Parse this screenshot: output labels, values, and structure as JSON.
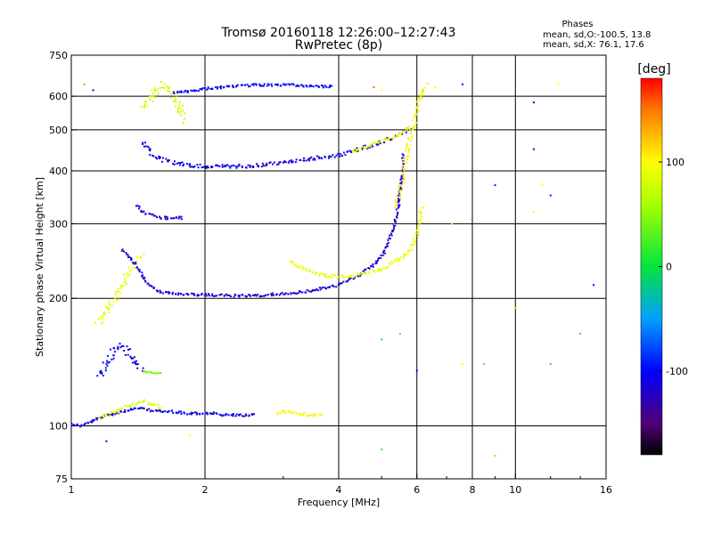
{
  "title": {
    "line1": "Tromsø 20160118 12:26:00–12:27:43",
    "line2": "RwPretec (8p)"
  },
  "stats": {
    "heading": "Phases",
    "line1": "mean, sd,O:-100.5, 13.8",
    "line2": "mean, sd,X:  76.1, 17.6"
  },
  "colorbar": {
    "label": "[deg]",
    "range": [
      -180,
      180
    ],
    "ticks": [
      100,
      0,
      -100
    ],
    "tick_labels": [
      "100",
      "0",
      "-100"
    ]
  },
  "chart_data": {
    "type": "scatter",
    "xlabel": "Frequency [MHz]",
    "ylabel": "Stationary phase Virtual Height [km]",
    "xscale": "log",
    "yscale": "log",
    "xlim": [
      1,
      16
    ],
    "ylim": [
      75,
      750
    ],
    "xticks": [
      1,
      2,
      4,
      6,
      8,
      10,
      16
    ],
    "xtick_labels": [
      "1",
      "2",
      "4",
      "6",
      "8",
      "10",
      "16"
    ],
    "xgrid": [
      2,
      4,
      6,
      8,
      10
    ],
    "yticks": [
      75,
      100,
      200,
      300,
      400,
      500,
      600,
      750
    ],
    "ytick_labels": [
      "75",
      "100",
      "200",
      "300",
      "400",
      "500",
      "600",
      "750"
    ],
    "ygrid": [
      100,
      200,
      300,
      400,
      500,
      600
    ],
    "grid": true,
    "color_variable": "phase [deg]",
    "traces": [
      {
        "x": [
          1.0,
          1.05,
          1.1,
          1.15,
          1.2,
          1.3,
          1.4,
          1.5,
          1.6,
          1.7,
          1.8,
          1.9,
          2.0,
          2.1,
          2.2,
          2.4,
          2.6
        ],
        "y": [
          101,
          100,
          102,
          104,
          106,
          108,
          110,
          109,
          108,
          108,
          107,
          107,
          107,
          107,
          106,
          106,
          106
        ],
        "phase": -110,
        "spread": 2
      },
      {
        "x": [
          1.15,
          1.2,
          1.25,
          1.3,
          1.35,
          1.4,
          1.45,
          1.55,
          1.6
        ],
        "y": [
          104,
          106,
          108,
          110,
          112,
          113,
          114,
          112,
          110
        ],
        "phase": 85,
        "spread": 3
      },
      {
        "x": [
          2.9,
          3.0,
          3.1,
          3.2,
          3.3,
          3.4,
          3.5,
          3.6,
          3.7
        ],
        "y": [
          107,
          108,
          108,
          107,
          107,
          106,
          106,
          106,
          106
        ],
        "phase": 95,
        "spread": 2
      },
      {
        "x": [
          1.15,
          1.2,
          1.25,
          1.3,
          1.35,
          1.4,
          1.45
        ],
        "y": [
          130,
          140,
          150,
          155,
          148,
          140,
          135
        ],
        "phase": -105,
        "spread": 5
      },
      {
        "x": [
          1.45,
          1.5,
          1.55,
          1.6
        ],
        "y": [
          134,
          134,
          133,
          133
        ],
        "phase": 40,
        "spread": 1
      },
      {
        "x": [
          1.15,
          1.2,
          1.25,
          1.3,
          1.35,
          1.4,
          1.45
        ],
        "y": [
          175,
          185,
          200,
          215,
          230,
          245,
          255
        ],
        "phase": 90,
        "spread": 5
      },
      {
        "x": [
          1.3,
          1.35,
          1.4,
          1.45,
          1.5,
          1.55,
          1.6,
          1.7,
          1.8,
          1.9,
          2.0,
          2.2,
          2.4,
          2.6,
          2.8,
          3.0,
          3.3,
          3.6,
          4.0,
          4.4,
          4.8,
          5.1,
          5.3,
          5.45,
          5.55,
          5.6
        ],
        "y": [
          260,
          250,
          240,
          225,
          215,
          210,
          207,
          205,
          204,
          204,
          204,
          203,
          203,
          203,
          204,
          205,
          207,
          210,
          215,
          225,
          240,
          260,
          290,
          330,
          380,
          440
        ],
        "phase": -115,
        "spread": 2
      },
      {
        "x": [
          3.1,
          3.3,
          3.5,
          3.7,
          4.0,
          4.3,
          4.6,
          5.0,
          5.4,
          5.8,
          6.0,
          6.1,
          6.15
        ],
        "y": [
          245,
          235,
          230,
          227,
          225,
          226,
          228,
          235,
          245,
          260,
          280,
          300,
          330
        ],
        "phase": 90,
        "spread": 3
      },
      {
        "x": [
          1.45,
          1.5,
          1.55,
          1.6,
          1.7,
          1.8,
          1.9,
          2.0,
          2.2,
          2.4,
          2.6,
          2.8,
          3.0,
          3.3,
          3.6,
          4.0,
          4.3,
          4.6,
          5.0,
          5.3,
          5.5,
          5.7,
          5.8
        ],
        "y": [
          470,
          445,
          430,
          425,
          418,
          414,
          412,
          410,
          410,
          410,
          412,
          415,
          420,
          425,
          430,
          435,
          445,
          455,
          470,
          480,
          490,
          500,
          505
        ],
        "phase": -110,
        "spread": 3
      },
      {
        "x": [
          4.3,
          4.6,
          5.0,
          5.3,
          5.6,
          5.8
        ],
        "y": [
          445,
          455,
          470,
          480,
          495,
          510
        ],
        "phase": 95,
        "spread": 2
      },
      {
        "x": [
          1.7,
          1.8,
          1.9,
          2.0,
          2.2,
          2.4,
          2.6,
          2.8,
          3.0,
          3.3,
          3.6,
          3.9
        ],
        "y": [
          610,
          615,
          620,
          625,
          630,
          635,
          638,
          638,
          638,
          636,
          634,
          632
        ],
        "phase": -105,
        "spread": 2
      },
      {
        "x": [
          5.4,
          5.5,
          5.6,
          5.7,
          5.8,
          5.9,
          6.0,
          6.1,
          6.2,
          6.3
        ],
        "y": [
          330,
          360,
          400,
          440,
          480,
          520,
          560,
          600,
          620,
          640
        ],
        "phase": 100,
        "spread": 4
      },
      {
        "x": [
          1.45,
          1.5,
          1.55,
          1.6,
          1.65,
          1.7,
          1.75,
          1.8
        ],
        "y": [
          560,
          590,
          620,
          640,
          630,
          600,
          560,
          520
        ],
        "phase": 75,
        "spread": 6
      },
      {
        "x": [
          1.4,
          1.45,
          1.5,
          1.55,
          1.6,
          1.7,
          1.8
        ],
        "y": [
          330,
          320,
          315,
          312,
          310,
          310,
          310
        ],
        "phase": -115,
        "spread": 3
      }
    ],
    "scatter_points": [
      {
        "x": 1.07,
        "y": 640,
        "phase": 20
      },
      {
        "x": 1.12,
        "y": 620,
        "phase": -110
      },
      {
        "x": 4.8,
        "y": 630,
        "phase": 150
      },
      {
        "x": 5.0,
        "y": 620,
        "phase": 100
      },
      {
        "x": 6.6,
        "y": 630,
        "phase": 90
      },
      {
        "x": 7.6,
        "y": 640,
        "phase": -100
      },
      {
        "x": 11.0,
        "y": 580,
        "phase": -110
      },
      {
        "x": 12.5,
        "y": 640,
        "phase": 100
      },
      {
        "x": 11.0,
        "y": 450,
        "phase": -110
      },
      {
        "x": 11.5,
        "y": 370,
        "phase": 100
      },
      {
        "x": 9.0,
        "y": 370,
        "phase": -90
      },
      {
        "x": 12.0,
        "y": 350,
        "phase": -100
      },
      {
        "x": 7.2,
        "y": 300,
        "phase": 80
      },
      {
        "x": 11.0,
        "y": 320,
        "phase": 100
      },
      {
        "x": 15.0,
        "y": 215,
        "phase": -100
      },
      {
        "x": 10.0,
        "y": 190,
        "phase": 120
      },
      {
        "x": 5.0,
        "y": 160,
        "phase": 10
      },
      {
        "x": 5.5,
        "y": 165,
        "phase": 30
      },
      {
        "x": 7.6,
        "y": 140,
        "phase": 100
      },
      {
        "x": 8.5,
        "y": 140,
        "phase": 20
      },
      {
        "x": 12.0,
        "y": 140,
        "phase": 10
      },
      {
        "x": 14.0,
        "y": 165,
        "phase": 20
      },
      {
        "x": 6.0,
        "y": 135,
        "phase": -100
      },
      {
        "x": 5.0,
        "y": 88,
        "phase": 20
      },
      {
        "x": 9.0,
        "y": 85,
        "phase": 40
      },
      {
        "x": 1.2,
        "y": 92,
        "phase": -100
      },
      {
        "x": 1.85,
        "y": 95,
        "phase": 100
      }
    ]
  }
}
